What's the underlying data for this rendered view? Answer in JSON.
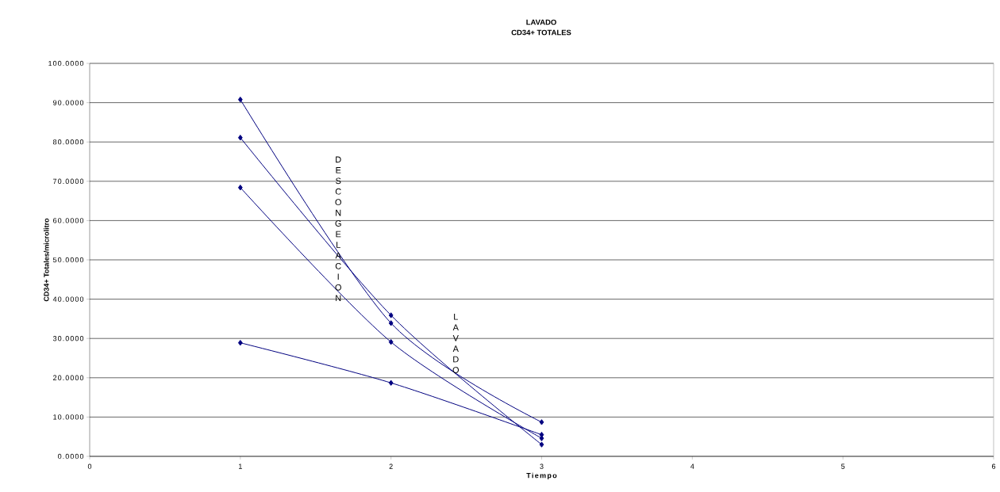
{
  "chart_data": {
    "type": "line",
    "title": "LAVADO",
    "subtitle": "CD34+ TOTALES",
    "xlabel": "Tiempo",
    "ylabel": "CD34+ Totales/microlitro",
    "x": [
      1,
      2,
      3
    ],
    "series": [
      {
        "color": "#000080",
        "values": [
          90.8,
          33.9,
          8.7
        ]
      },
      {
        "color": "#000080",
        "values": [
          81.1,
          35.9,
          3.0
        ]
      },
      {
        "color": "#000080",
        "values": [
          68.4,
          29.1,
          4.6
        ]
      },
      {
        "color": "#000080",
        "values": [
          28.9,
          18.7,
          5.5
        ]
      }
    ],
    "xlim": [
      0,
      6
    ],
    "xticks": [
      0,
      1,
      2,
      3,
      4,
      5,
      6
    ],
    "ylim": [
      0,
      100
    ],
    "yticks": [
      {
        "value": 0,
        "label": "0.0000"
      },
      {
        "value": 10,
        "label": "10.0000"
      },
      {
        "value": 20,
        "label": "20.0000"
      },
      {
        "value": 30,
        "label": "30.0000"
      },
      {
        "value": 40,
        "label": "40.0000"
      },
      {
        "value": 50,
        "label": "50.0000"
      },
      {
        "value": 60,
        "label": "60.0000"
      },
      {
        "value": 70,
        "label": "70.0000"
      },
      {
        "value": 80,
        "label": "80.0000"
      },
      {
        "value": 90,
        "label": "90.0000"
      },
      {
        "value": 100,
        "label": "100.0000"
      }
    ],
    "grid": "y",
    "marker": "diamond",
    "annotations": [
      "DESCONGELACION",
      "LAVADO"
    ]
  }
}
